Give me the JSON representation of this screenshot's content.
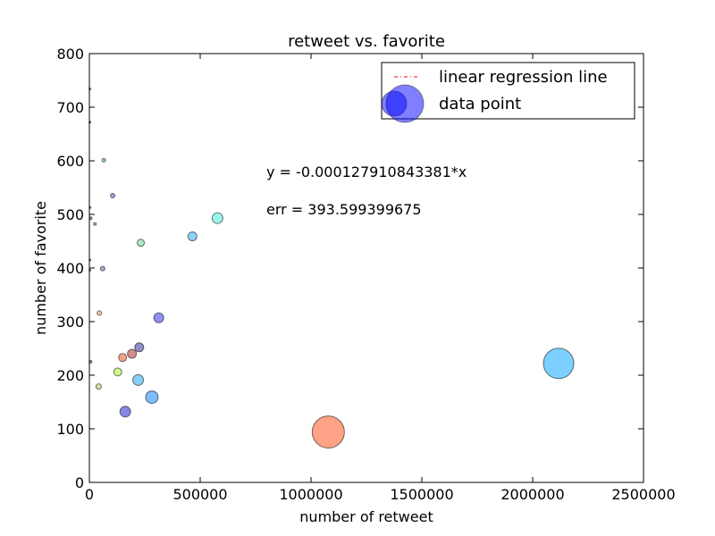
{
  "chart_data": {
    "type": "scatter",
    "title": "retweet vs. favorite",
    "xlabel": "number of retweet",
    "ylabel": "number of favorite",
    "xlim": [
      0,
      2500000
    ],
    "ylim": [
      0,
      800
    ],
    "xticks": [
      0,
      500000,
      1000000,
      1500000,
      2000000,
      2500000
    ],
    "yticks": [
      0,
      100,
      200,
      300,
      400,
      500,
      600,
      700,
      800
    ],
    "grid": false,
    "legend": {
      "position": "top-right",
      "entries": [
        {
          "label": "linear regression line",
          "marker": "dash-dot",
          "color": "#ff0000"
        },
        {
          "label": "data point",
          "marker": "circle",
          "color": "#0000ff"
        }
      ]
    },
    "annotations": {
      "equation": "y = -0.000127910843381*x",
      "error": "err = 393.599399675"
    },
    "regression": {
      "slope": -0.000127910843381,
      "intercept": 0
    },
    "points": [
      {
        "x": 2500,
        "y": 734,
        "size": 1,
        "color": "#333366"
      },
      {
        "x": 2500,
        "y": 672,
        "size": 1,
        "color": "#333366"
      },
      {
        "x": 3000,
        "y": 513,
        "size": 1,
        "color": "#333366"
      },
      {
        "x": 6000,
        "y": 493,
        "size": 1.5,
        "color": "#664444"
      },
      {
        "x": 2500,
        "y": 415,
        "size": 1,
        "color": "#444444"
      },
      {
        "x": 2500,
        "y": 396,
        "size": 1,
        "color": "#444444"
      },
      {
        "x": 5000,
        "y": 225,
        "size": 1.5,
        "color": "#224466"
      },
      {
        "x": 25000,
        "y": 482,
        "size": 1.5,
        "color": "#888855"
      },
      {
        "x": 65000,
        "y": 601,
        "size": 2,
        "color": "#44aadd"
      },
      {
        "x": 105000,
        "y": 535,
        "size": 2.5,
        "color": "#5555cc"
      },
      {
        "x": 60000,
        "y": 399,
        "size": 2.5,
        "color": "#6666aa"
      },
      {
        "x": 45000,
        "y": 316,
        "size": 2.5,
        "color": "#ddaa44"
      },
      {
        "x": 42000,
        "y": 179,
        "size": 3,
        "color": "#cccc55"
      },
      {
        "x": 232000,
        "y": 447,
        "size": 4,
        "color": "#66dd99"
      },
      {
        "x": 465000,
        "y": 459,
        "size": 5,
        "color": "#33aaee"
      },
      {
        "x": 578000,
        "y": 493,
        "size": 6,
        "color": "#44eedd"
      },
      {
        "x": 313000,
        "y": 307,
        "size": 5.5,
        "color": "#3333ee"
      },
      {
        "x": 225000,
        "y": 252,
        "size": 5,
        "color": "#333399"
      },
      {
        "x": 192000,
        "y": 240,
        "size": 5,
        "color": "#aa3333"
      },
      {
        "x": 150000,
        "y": 233,
        "size": 4.5,
        "color": "#ee5522"
      },
      {
        "x": 128000,
        "y": 206,
        "size": 4.5,
        "color": "#aaee33"
      },
      {
        "x": 220000,
        "y": 191,
        "size": 6,
        "color": "#22aaee"
      },
      {
        "x": 282000,
        "y": 159,
        "size": 7,
        "color": "#1188ff"
      },
      {
        "x": 162000,
        "y": 132,
        "size": 6,
        "color": "#2222cc"
      },
      {
        "x": 1078000,
        "y": 94,
        "size": 18,
        "color": "#ff5522"
      },
      {
        "x": 2117000,
        "y": 222,
        "size": 17,
        "color": "#11aaff"
      }
    ]
  }
}
